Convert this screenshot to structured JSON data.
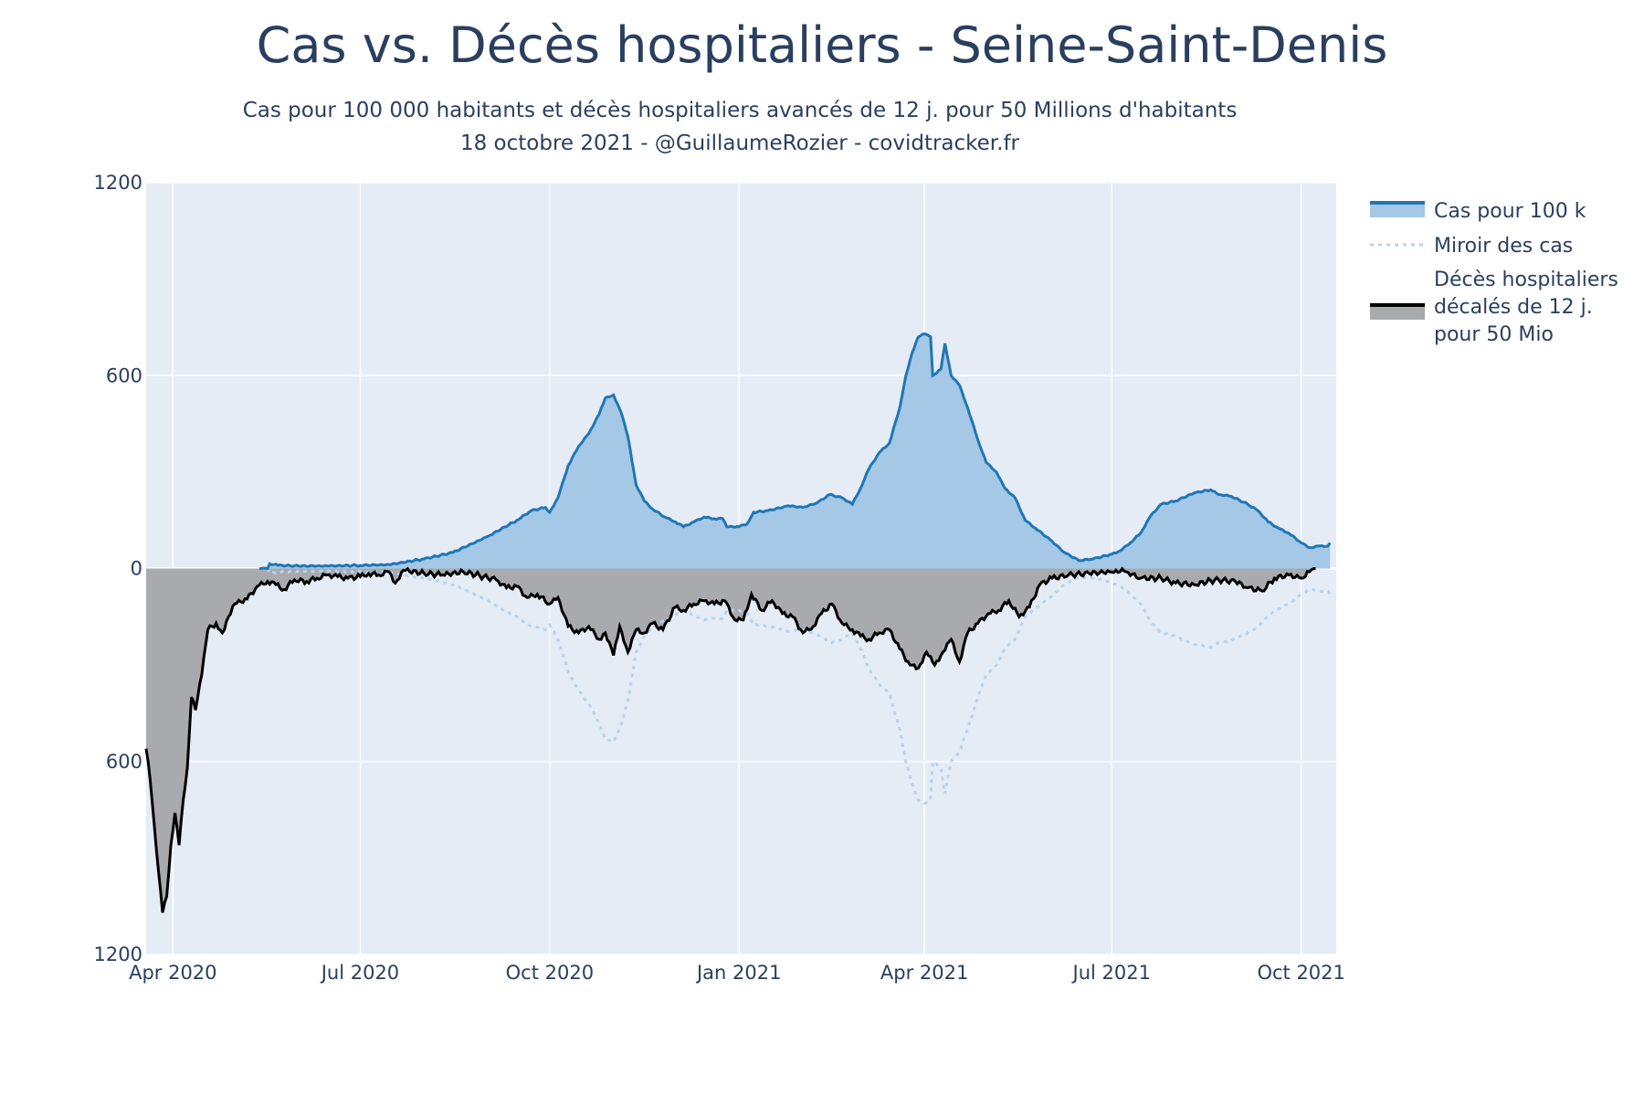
{
  "chart_data": {
    "type": "area",
    "title": "Cas vs. Décès hospitaliers - Seine-Saint-Denis",
    "subtitle_line1": "Cas pour 100 000 habitants et décès hospitaliers avancés de 12 j. pour 50 Millions d'habitants",
    "subtitle_line2": "18 octobre 2021 - @GuillaumeRozier - covidtracker.fr",
    "xlabel": "",
    "ylabel": "",
    "x_range": [
      "2020-03-19",
      "2021-10-18"
    ],
    "ylim": [
      -1200,
      1200
    ],
    "y_tick_values": [
      1200,
      600,
      0,
      -600,
      -1200
    ],
    "y_tick_labels": [
      "1200",
      "600",
      "0",
      "600",
      "1200"
    ],
    "x_tick_values": [
      "2020-04-01",
      "2020-07-01",
      "2020-10-01",
      "2021-01-01",
      "2021-04-01",
      "2021-07-01",
      "2021-10-01"
    ],
    "x_tick_labels": [
      "Apr 2020",
      "Jul 2020",
      "Oct 2020",
      "Jan 2021",
      "Apr 2021",
      "Jul 2021",
      "Oct 2021"
    ],
    "grid": true,
    "legend_position": "right",
    "plot_background": "#e5ecf6",
    "series": [
      {
        "name": "Cas pour 100 k",
        "kind": "line-fill-up",
        "line_color": "#1f77b4",
        "fill_color": "#a4c8e6",
        "points": [
          [
            "2020-05-13",
            0
          ],
          [
            "2020-05-17",
            0
          ],
          [
            "2020-05-18",
            15
          ],
          [
            "2020-05-22",
            10
          ],
          [
            "2020-06-01",
            8
          ],
          [
            "2020-06-15",
            8
          ],
          [
            "2020-07-01",
            10
          ],
          [
            "2020-07-15",
            12
          ],
          [
            "2020-08-01",
            30
          ],
          [
            "2020-08-15",
            50
          ],
          [
            "2020-09-01",
            100
          ],
          [
            "2020-09-15",
            150
          ],
          [
            "2020-09-22",
            180
          ],
          [
            "2020-09-29",
            190
          ],
          [
            "2020-10-01",
            175
          ],
          [
            "2020-10-05",
            220
          ],
          [
            "2020-10-10",
            320
          ],
          [
            "2020-10-15",
            380
          ],
          [
            "2020-10-20",
            420
          ],
          [
            "2020-10-25",
            480
          ],
          [
            "2020-10-28",
            530
          ],
          [
            "2020-11-01",
            540
          ],
          [
            "2020-11-05",
            480
          ],
          [
            "2020-11-08",
            410
          ],
          [
            "2020-11-12",
            260
          ],
          [
            "2020-11-16",
            210
          ],
          [
            "2020-11-20",
            185
          ],
          [
            "2020-11-26",
            160
          ],
          [
            "2020-12-01",
            145
          ],
          [
            "2020-12-05",
            130
          ],
          [
            "2020-12-10",
            145
          ],
          [
            "2020-12-15",
            160
          ],
          [
            "2020-12-20",
            155
          ],
          [
            "2020-12-24",
            155
          ],
          [
            "2020-12-26",
            130
          ],
          [
            "2021-01-01",
            130
          ],
          [
            "2021-01-05",
            140
          ],
          [
            "2021-01-08",
            175
          ],
          [
            "2021-01-15",
            180
          ],
          [
            "2021-01-25",
            195
          ],
          [
            "2021-02-01",
            190
          ],
          [
            "2021-02-08",
            205
          ],
          [
            "2021-02-14",
            230
          ],
          [
            "2021-02-20",
            220
          ],
          [
            "2021-02-25",
            200
          ],
          [
            "2021-03-01",
            250
          ],
          [
            "2021-03-05",
            310
          ],
          [
            "2021-03-10",
            360
          ],
          [
            "2021-03-15",
            390
          ],
          [
            "2021-03-20",
            500
          ],
          [
            "2021-03-23",
            600
          ],
          [
            "2021-03-26",
            670
          ],
          [
            "2021-03-29",
            720
          ],
          [
            "2021-04-01",
            730
          ],
          [
            "2021-04-04",
            720
          ],
          [
            "2021-04-05",
            600
          ],
          [
            "2021-04-09",
            620
          ],
          [
            "2021-04-11",
            700
          ],
          [
            "2021-04-14",
            600
          ],
          [
            "2021-04-18",
            570
          ],
          [
            "2021-04-22",
            500
          ],
          [
            "2021-04-27",
            400
          ],
          [
            "2021-05-01",
            330
          ],
          [
            "2021-05-06",
            300
          ],
          [
            "2021-05-10",
            250
          ],
          [
            "2021-05-15",
            220
          ],
          [
            "2021-05-20",
            150
          ],
          [
            "2021-05-25",
            125
          ],
          [
            "2021-06-01",
            90
          ],
          [
            "2021-06-08",
            50
          ],
          [
            "2021-06-15",
            25
          ],
          [
            "2021-06-22",
            30
          ],
          [
            "2021-07-01",
            45
          ],
          [
            "2021-07-05",
            55
          ],
          [
            "2021-07-10",
            80
          ],
          [
            "2021-07-15",
            110
          ],
          [
            "2021-07-20",
            165
          ],
          [
            "2021-07-25",
            200
          ],
          [
            "2021-08-01",
            210
          ],
          [
            "2021-08-10",
            235
          ],
          [
            "2021-08-18",
            245
          ],
          [
            "2021-08-22",
            230
          ],
          [
            "2021-08-28",
            225
          ],
          [
            "2021-09-05",
            200
          ],
          [
            "2021-09-10",
            180
          ],
          [
            "2021-09-15",
            145
          ],
          [
            "2021-09-20",
            125
          ],
          [
            "2021-09-25",
            110
          ],
          [
            "2021-10-01",
            80
          ],
          [
            "2021-10-05",
            65
          ],
          [
            "2021-10-10",
            70
          ],
          [
            "2021-10-14",
            70
          ],
          [
            "2021-10-15",
            80
          ]
        ]
      },
      {
        "name": "Miroir des cas",
        "kind": "dotted-mirror-of-cases",
        "line_color": "#b9d3ec"
      },
      {
        "name": "Décès hospitaliers décalés de 12 j. pour 50 Mio",
        "legend_lines": [
          "Décès hospitaliers",
          "décalés de 12 j.",
          "pour 50 Mio"
        ],
        "kind": "line-fill-down",
        "line_color": "#000000",
        "fill_color": "#a9aaae",
        "points": [
          [
            "2020-03-19",
            560
          ],
          [
            "2020-03-21",
            660
          ],
          [
            "2020-03-23",
            800
          ],
          [
            "2020-03-25",
            940
          ],
          [
            "2020-03-27",
            1070
          ],
          [
            "2020-03-29",
            1020
          ],
          [
            "2020-03-31",
            860
          ],
          [
            "2020-04-02",
            760
          ],
          [
            "2020-04-04",
            860
          ],
          [
            "2020-04-06",
            720
          ],
          [
            "2020-04-08",
            620
          ],
          [
            "2020-04-10",
            400
          ],
          [
            "2020-04-12",
            440
          ],
          [
            "2020-04-15",
            330
          ],
          [
            "2020-04-18",
            190
          ],
          [
            "2020-04-22",
            170
          ],
          [
            "2020-04-25",
            200
          ],
          [
            "2020-04-28",
            150
          ],
          [
            "2020-05-01",
            110
          ],
          [
            "2020-05-07",
            95
          ],
          [
            "2020-05-12",
            55
          ],
          [
            "2020-05-17",
            40
          ],
          [
            "2020-05-21",
            50
          ],
          [
            "2020-05-25",
            65
          ],
          [
            "2020-05-30",
            35
          ],
          [
            "2020-06-05",
            40
          ],
          [
            "2020-06-10",
            30
          ],
          [
            "2020-06-15",
            20
          ],
          [
            "2020-06-20",
            25
          ],
          [
            "2020-06-25",
            30
          ],
          [
            "2020-07-01",
            25
          ],
          [
            "2020-07-05",
            15
          ],
          [
            "2020-07-10",
            20
          ],
          [
            "2020-07-15",
            10
          ],
          [
            "2020-07-18",
            45
          ],
          [
            "2020-07-22",
            5
          ],
          [
            "2020-08-01",
            15
          ],
          [
            "2020-08-10",
            20
          ],
          [
            "2020-08-20",
            10
          ],
          [
            "2020-08-30",
            25
          ],
          [
            "2020-09-05",
            35
          ],
          [
            "2020-09-10",
            60
          ],
          [
            "2020-09-15",
            55
          ],
          [
            "2020-09-20",
            90
          ],
          [
            "2020-09-25",
            80
          ],
          [
            "2020-10-01",
            110
          ],
          [
            "2020-10-05",
            90
          ],
          [
            "2020-10-10",
            180
          ],
          [
            "2020-10-15",
            200
          ],
          [
            "2020-10-20",
            180
          ],
          [
            "2020-10-25",
            220
          ],
          [
            "2020-10-28",
            200
          ],
          [
            "2020-11-01",
            270
          ],
          [
            "2020-11-04",
            180
          ],
          [
            "2020-11-08",
            260
          ],
          [
            "2020-11-12",
            190
          ],
          [
            "2020-11-16",
            200
          ],
          [
            "2020-11-20",
            170
          ],
          [
            "2020-11-25",
            190
          ],
          [
            "2020-12-01",
            120
          ],
          [
            "2020-12-05",
            130
          ],
          [
            "2020-12-10",
            110
          ],
          [
            "2020-12-15",
            100
          ],
          [
            "2020-12-20",
            110
          ],
          [
            "2020-12-25",
            100
          ],
          [
            "2020-12-30",
            160
          ],
          [
            "2021-01-03",
            160
          ],
          [
            "2021-01-07",
            80
          ],
          [
            "2021-01-12",
            130
          ],
          [
            "2021-01-17",
            100
          ],
          [
            "2021-01-22",
            140
          ],
          [
            "2021-01-27",
            150
          ],
          [
            "2021-02-01",
            200
          ],
          [
            "2021-02-06",
            180
          ],
          [
            "2021-02-10",
            140
          ],
          [
            "2021-02-15",
            110
          ],
          [
            "2021-02-20",
            170
          ],
          [
            "2021-02-25",
            190
          ],
          [
            "2021-03-01",
            210
          ],
          [
            "2021-03-05",
            220
          ],
          [
            "2021-03-10",
            200
          ],
          [
            "2021-03-15",
            190
          ],
          [
            "2021-03-20",
            250
          ],
          [
            "2021-03-25",
            300
          ],
          [
            "2021-03-29",
            310
          ],
          [
            "2021-04-02",
            260
          ],
          [
            "2021-04-06",
            300
          ],
          [
            "2021-04-10",
            260
          ],
          [
            "2021-04-14",
            220
          ],
          [
            "2021-04-18",
            290
          ],
          [
            "2021-04-22",
            200
          ],
          [
            "2021-04-27",
            170
          ],
          [
            "2021-05-02",
            140
          ],
          [
            "2021-05-07",
            130
          ],
          [
            "2021-05-12",
            100
          ],
          [
            "2021-05-17",
            150
          ],
          [
            "2021-05-22",
            120
          ],
          [
            "2021-05-27",
            50
          ],
          [
            "2021-06-02",
            30
          ],
          [
            "2021-06-10",
            20
          ],
          [
            "2021-06-20",
            15
          ],
          [
            "2021-06-30",
            10
          ],
          [
            "2021-07-03",
            5
          ],
          [
            "2021-07-08",
            10
          ],
          [
            "2021-07-15",
            30
          ],
          [
            "2021-07-25",
            30
          ],
          [
            "2021-08-01",
            45
          ],
          [
            "2021-08-10",
            50
          ],
          [
            "2021-08-20",
            35
          ],
          [
            "2021-08-30",
            40
          ],
          [
            "2021-09-05",
            60
          ],
          [
            "2021-09-12",
            70
          ],
          [
            "2021-09-18",
            30
          ],
          [
            "2021-09-25",
            20
          ],
          [
            "2021-10-01",
            30
          ],
          [
            "2021-10-05",
            10
          ],
          [
            "2021-10-08",
            0
          ]
        ]
      }
    ]
  }
}
